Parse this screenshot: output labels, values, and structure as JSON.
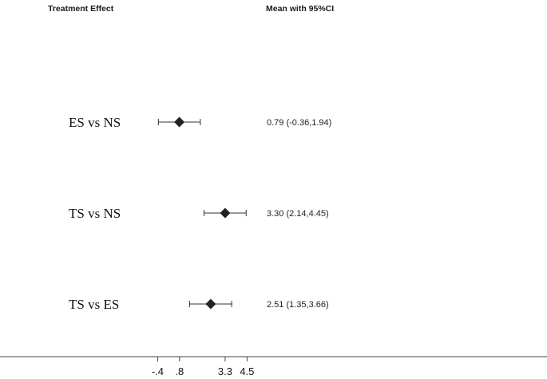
{
  "headers": {
    "left": "Treatment Effect",
    "right": "Mean with 95%CI"
  },
  "chart_data": {
    "type": "forest",
    "categories": [
      "ES vs NS",
      "TS vs NS",
      "TS vs ES"
    ],
    "estimates": [
      0.79,
      3.3,
      2.51
    ],
    "ci_lower": [
      -0.36,
      2.14,
      1.35
    ],
    "ci_upper": [
      1.94,
      4.45,
      3.66
    ],
    "value_labels": [
      "0.79 (-0.36,1.94)",
      "3.30 (2.14,4.45)",
      "2.51 (1.35,3.66)"
    ],
    "x_ticks": [
      -0.4,
      0.8,
      3.3,
      4.5
    ],
    "x_tick_labels": [
      "-.4",
      ".8",
      "3.3",
      "4.5"
    ],
    "grid": false,
    "marker_color": "#222222"
  }
}
